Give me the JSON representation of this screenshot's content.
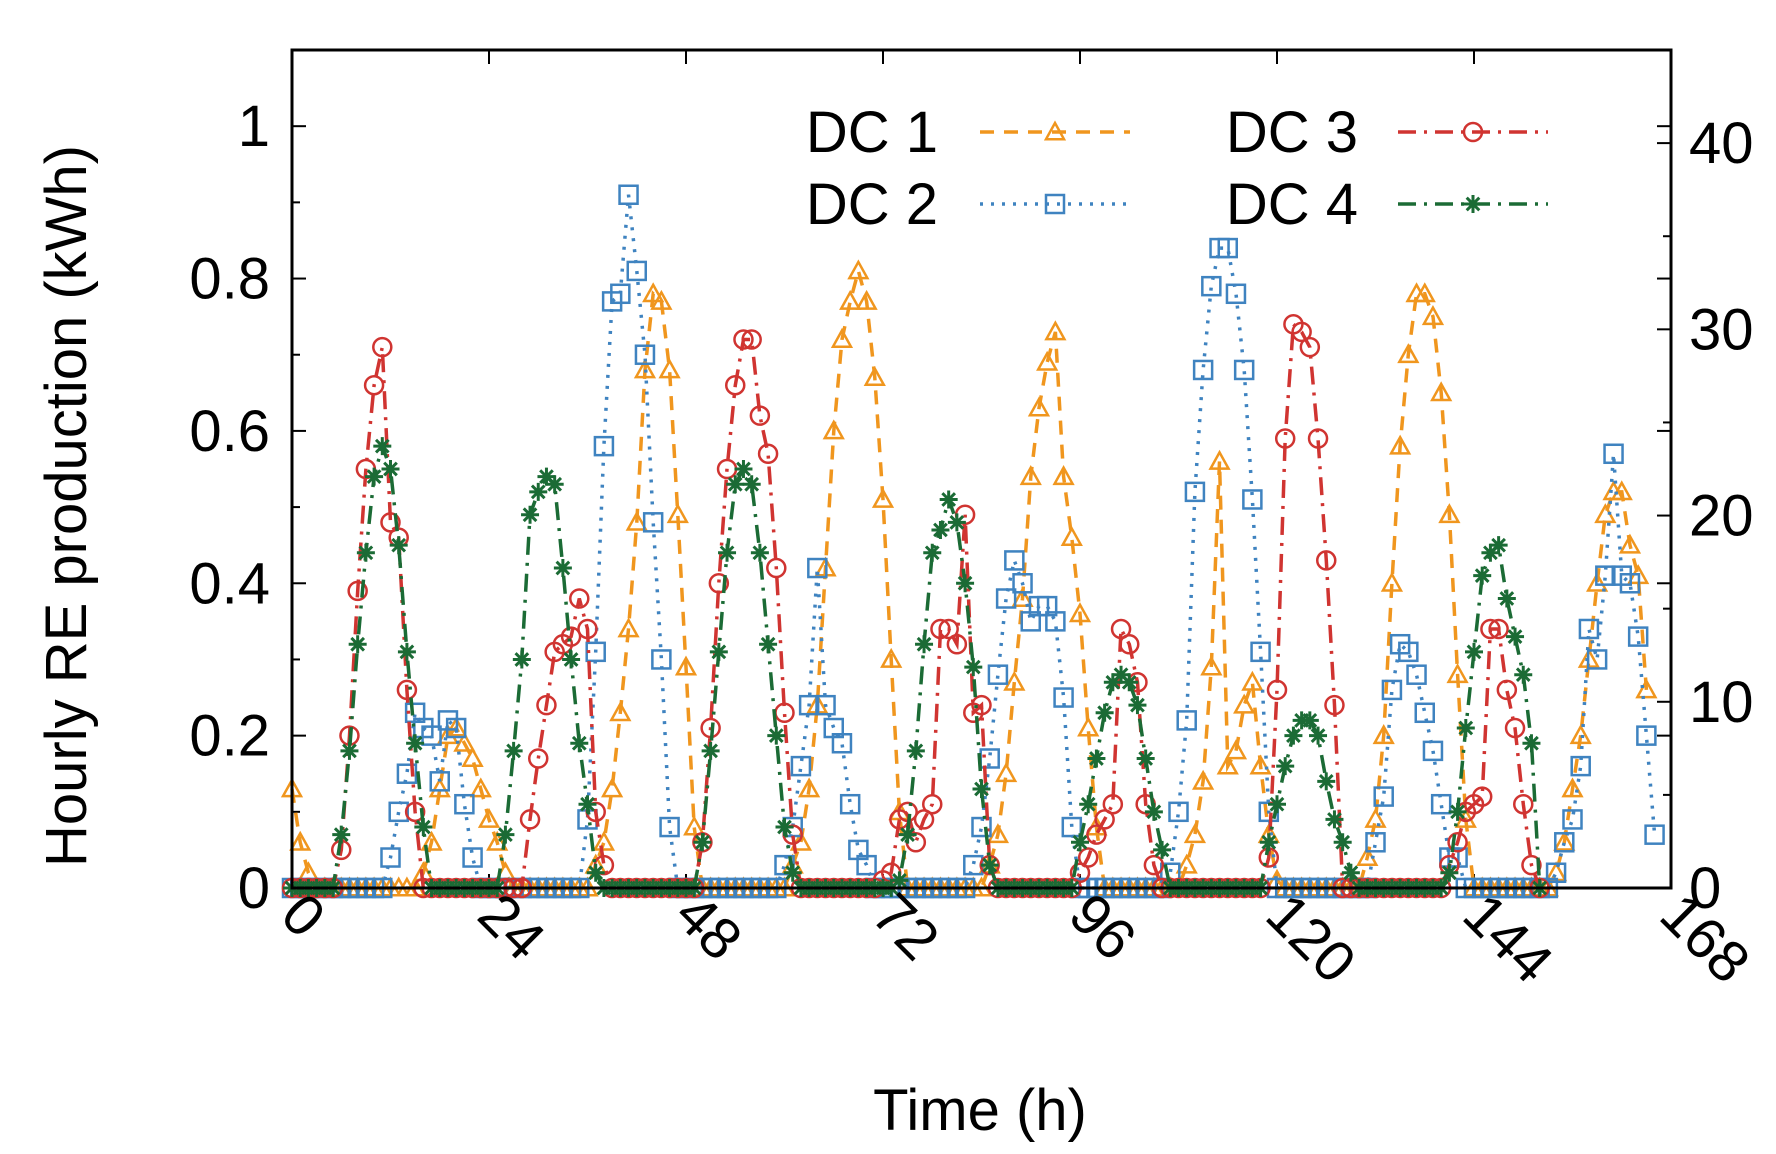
{
  "chart_data": {
    "type": "line",
    "xlabel": "Time (h)",
    "ylabel": "Hourly RE production (kWh)",
    "xlim": [
      0,
      168
    ],
    "ylim": [
      0,
      1.1
    ],
    "y2lim": [
      0,
      45
    ],
    "x_ticks": [
      "0",
      "24",
      "48",
      "72",
      "96",
      "120",
      "144",
      "168"
    ],
    "x_tick_values": [
      0,
      24,
      48,
      72,
      96,
      120,
      144,
      168
    ],
    "y_ticks": [
      "0",
      "0.2",
      "0.4",
      "0.6",
      "0.8",
      "1"
    ],
    "y_tick_values": [
      0,
      0.2,
      0.4,
      0.6,
      0.8,
      1.0
    ],
    "y2_ticks": [
      "0",
      "10",
      "20",
      "30",
      "40"
    ],
    "y2_tick_values": [
      0,
      10,
      20,
      30,
      40
    ],
    "legend_position": "top-center",
    "series": [
      {
        "name": "DC 1",
        "color": "#F0961E",
        "dash": "dashed",
        "marker": "triangle",
        "values": [
          0.13,
          0.06,
          0.02,
          0,
          0,
          0,
          0,
          0,
          0,
          0,
          0,
          0,
          0,
          0,
          0,
          0,
          0.02,
          0.06,
          0.13,
          0.2,
          0.21,
          0.19,
          0.17,
          0.13,
          0.09,
          0.06,
          0.02,
          0,
          0,
          0,
          0,
          0,
          0,
          0,
          0,
          0,
          0,
          0.03,
          0.06,
          0.13,
          0.23,
          0.34,
          0.48,
          0.68,
          0.78,
          0.77,
          0.68,
          0.49,
          0.29,
          0.08,
          0,
          0,
          0,
          0,
          0,
          0,
          0,
          0,
          0,
          0,
          0,
          0.03,
          0.06,
          0.13,
          0.24,
          0.42,
          0.6,
          0.72,
          0.77,
          0.81,
          0.77,
          0.67,
          0.51,
          0.3,
          0.1,
          0,
          0,
          0,
          0,
          0,
          0,
          0,
          0,
          0,
          0,
          0.03,
          0.07,
          0.15,
          0.27,
          0.38,
          0.54,
          0.63,
          0.69,
          0.73,
          0.54,
          0.46,
          0.36,
          0.21,
          0.08,
          0,
          0,
          0,
          0,
          0,
          0,
          0,
          0,
          0,
          0,
          0.03,
          0.07,
          0.14,
          0.29,
          0.56,
          0.16,
          0.18,
          0.24,
          0.27,
          0.16,
          0.07,
          0.01,
          0,
          0,
          0,
          0,
          0,
          0,
          0,
          0,
          0,
          0,
          0.04,
          0.09,
          0.2,
          0.4,
          0.58,
          0.7,
          0.78,
          0.78,
          0.75,
          0.65,
          0.49,
          0.28,
          0.09,
          0,
          0,
          0,
          0,
          0,
          0,
          0,
          0,
          0,
          0,
          0.02,
          0.06,
          0.13,
          0.2,
          0.3,
          0.4,
          0.49,
          0.52,
          0.52,
          0.45,
          0.41,
          0.26
        ]
      },
      {
        "name": "DC 2",
        "color": "#3F83C0",
        "dash": "dotted",
        "marker": "square",
        "values": [
          0,
          0,
          0,
          0,
          0,
          0,
          0,
          0,
          0,
          0,
          0,
          0,
          0.04,
          0.1,
          0.15,
          0.23,
          0.21,
          0.2,
          0.14,
          0.22,
          0.21,
          0.11,
          0.04,
          0,
          0,
          0,
          0,
          0,
          0,
          0,
          0,
          0,
          0,
          0,
          0,
          0,
          0.09,
          0.31,
          0.58,
          0.77,
          0.78,
          0.91,
          0.81,
          0.7,
          0.48,
          0.3,
          0.08,
          0,
          0,
          0,
          0,
          0,
          0,
          0,
          0,
          0,
          0,
          0,
          0,
          0,
          0.03,
          0.08,
          0.16,
          0.24,
          0.42,
          0.24,
          0.21,
          0.19,
          0.11,
          0.05,
          0.03,
          0,
          0,
          0,
          0,
          0,
          0,
          0,
          0,
          0,
          0,
          0,
          0,
          0.03,
          0.08,
          0.17,
          0.28,
          0.38,
          0.43,
          0.4,
          0.35,
          0.37,
          0.37,
          0.35,
          0.25,
          0.08,
          0,
          0,
          0,
          0,
          0,
          0,
          0,
          0,
          0,
          0,
          0,
          0.02,
          0.1,
          0.22,
          0.52,
          0.68,
          0.79,
          0.84,
          0.84,
          0.78,
          0.68,
          0.51,
          0.31,
          0.1,
          0,
          0,
          0,
          0,
          0,
          0,
          0,
          0,
          0,
          0,
          0,
          0,
          0.06,
          0.12,
          0.26,
          0.32,
          0.31,
          0.28,
          0.23,
          0.18,
          0.11,
          0.04,
          0.04,
          0,
          0,
          0,
          0,
          0,
          0,
          0,
          0,
          0,
          0,
          0,
          0.02,
          0.06,
          0.09,
          0.16,
          0.34,
          0.3,
          0.41,
          0.57,
          0.41,
          0.4,
          0.33,
          0.2,
          0.07
        ]
      },
      {
        "name": "DC 3",
        "color": "#D03431",
        "dash": "dashdot",
        "marker": "circle",
        "values": [
          0,
          0,
          0,
          0,
          0,
          0,
          0.05,
          0.2,
          0.39,
          0.55,
          0.66,
          0.71,
          0.48,
          0.46,
          0.26,
          0.1,
          0,
          0,
          0,
          0,
          0,
          0,
          0,
          0,
          0,
          0,
          0,
          0,
          0,
          0.09,
          0.17,
          0.24,
          0.31,
          0.32,
          0.33,
          0.38,
          0.34,
          0.1,
          0.03,
          0,
          0,
          0,
          0,
          0,
          0,
          0,
          0,
          0,
          0,
          0,
          0.06,
          0.21,
          0.4,
          0.55,
          0.66,
          0.72,
          0.72,
          0.62,
          0.57,
          0.42,
          0.23,
          0.07,
          0,
          0,
          0,
          0,
          0,
          0,
          0,
          0,
          0,
          0,
          0.01,
          0.02,
          0.09,
          0.1,
          0.06,
          0.09,
          0.11,
          0.34,
          0.34,
          0.32,
          0.49,
          0.23,
          0.24,
          0.03,
          0,
          0,
          0,
          0,
          0,
          0,
          0,
          0,
          0,
          0,
          0.02,
          0.04,
          0.07,
          0.09,
          0.11,
          0.34,
          0.32,
          0.27,
          0.11,
          0.03,
          0,
          0,
          0,
          0,
          0,
          0,
          0,
          0,
          0,
          0,
          0,
          0,
          0,
          0.04,
          0.26,
          0.59,
          0.74,
          0.73,
          0.71,
          0.59,
          0.43,
          0.24,
          0,
          0,
          0,
          0,
          0,
          0,
          0,
          0,
          0,
          0,
          0,
          0,
          0,
          0.03,
          0.06,
          0.1,
          0.11,
          0.12,
          0.34,
          0.34,
          0.26,
          0.21,
          0.11,
          0.03,
          0
        ]
      },
      {
        "name": "DC 4",
        "color": "#1B6B35",
        "dash": "dashdot",
        "marker": "star",
        "values": [
          0,
          0,
          0,
          0,
          0,
          0,
          0.07,
          0.18,
          0.32,
          0.44,
          0.54,
          0.58,
          0.55,
          0.45,
          0.31,
          0.19,
          0.08,
          0,
          0,
          0,
          0,
          0,
          0,
          0,
          0,
          0,
          0.07,
          0.18,
          0.3,
          0.49,
          0.52,
          0.54,
          0.53,
          0.42,
          0.3,
          0.19,
          0.11,
          0.02,
          0,
          0,
          0,
          0,
          0,
          0,
          0,
          0,
          0,
          0,
          0,
          0,
          0.06,
          0.18,
          0.31,
          0.44,
          0.53,
          0.55,
          0.53,
          0.44,
          0.32,
          0.2,
          0.08,
          0.02,
          0,
          0,
          0,
          0,
          0,
          0,
          0,
          0,
          0,
          0,
          0,
          0,
          0.01,
          0.07,
          0.18,
          0.32,
          0.44,
          0.47,
          0.51,
          0.48,
          0.4,
          0.29,
          0.13,
          0.03,
          0,
          0,
          0,
          0,
          0,
          0,
          0,
          0,
          0,
          0,
          0.06,
          0.11,
          0.17,
          0.23,
          0.27,
          0.28,
          0.27,
          0.24,
          0.17,
          0.1,
          0.05,
          0,
          0,
          0,
          0,
          0,
          0,
          0,
          0,
          0,
          0,
          0,
          0,
          0.06,
          0.11,
          0.16,
          0.2,
          0.22,
          0.22,
          0.2,
          0.14,
          0.09,
          0.06,
          0.02,
          0,
          0,
          0,
          0,
          0,
          0,
          0,
          0,
          0,
          0,
          0,
          0.02,
          0.1,
          0.21,
          0.31,
          0.41,
          0.44,
          0.45,
          0.38,
          0.33,
          0.28,
          0.19,
          0
        ]
      }
    ]
  }
}
